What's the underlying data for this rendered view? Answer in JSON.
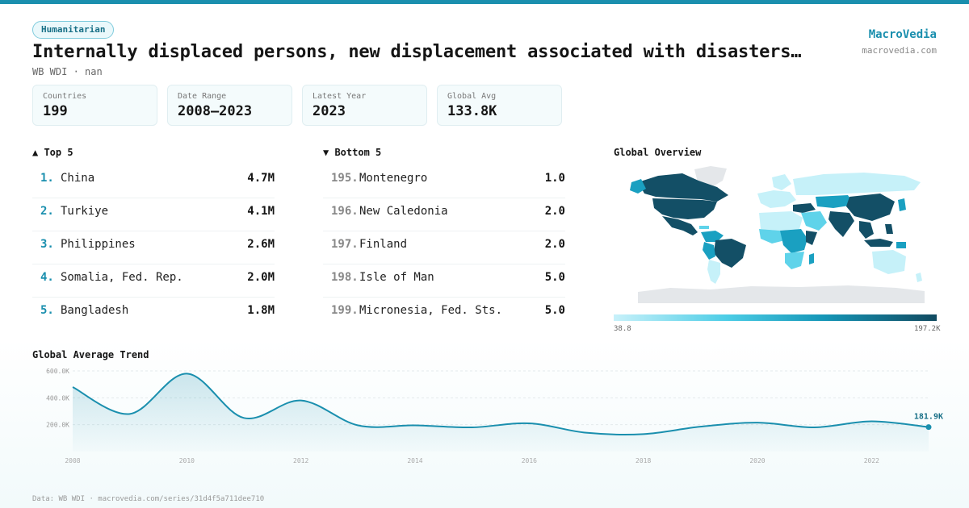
{
  "category": "Humanitarian",
  "title": "Internally displaced persons, new displacement associated with disasters…",
  "subtitle": "WB WDI · nan",
  "brand": {
    "name": "MacroVedia",
    "url": "macrovedia.com"
  },
  "stats": [
    {
      "label": "Countries",
      "value": "199"
    },
    {
      "label": "Date Range",
      "value": "2008–2023"
    },
    {
      "label": "Latest Year",
      "value": "2023"
    },
    {
      "label": "Global Avg",
      "value": "133.8K"
    }
  ],
  "top5": {
    "heading": "▲ Top 5",
    "items": [
      {
        "rank": "1.",
        "name": "China",
        "value": "4.7M"
      },
      {
        "rank": "2.",
        "name": "Turkiye",
        "value": "4.1M"
      },
      {
        "rank": "3.",
        "name": "Philippines",
        "value": "2.6M"
      },
      {
        "rank": "4.",
        "name": "Somalia, Fed. Rep.",
        "value": "2.0M"
      },
      {
        "rank": "5.",
        "name": "Bangladesh",
        "value": "1.8M"
      }
    ]
  },
  "bottom5": {
    "heading": "▼ Bottom 5",
    "items": [
      {
        "rank": "195.",
        "name": "Montenegro",
        "value": "1.0"
      },
      {
        "rank": "196.",
        "name": "New Caledonia",
        "value": "2.0"
      },
      {
        "rank": "197.",
        "name": "Finland",
        "value": "2.0"
      },
      {
        "rank": "198.",
        "name": "Isle of Man",
        "value": "5.0"
      },
      {
        "rank": "199.",
        "name": "Micronesia, Fed. Sts.",
        "value": "5.0"
      }
    ]
  },
  "map": {
    "heading": "Global Overview",
    "legend_min": "38.8",
    "legend_max": "197.2K",
    "colors": {
      "dark": "#134f66",
      "mid": "#1aa0c1",
      "light": "#5fd3ea",
      "pale": "#c6f1f9",
      "nodata": "#e4e7ea"
    }
  },
  "trend_heading": "Global Average Trend",
  "chart_data": {
    "type": "line",
    "title": "Global Average Trend",
    "x": [
      2008,
      2009,
      2010,
      2011,
      2012,
      2013,
      2014,
      2015,
      2016,
      2017,
      2018,
      2019,
      2020,
      2021,
      2022,
      2023
    ],
    "values": [
      480000,
      280000,
      580000,
      250000,
      380000,
      195000,
      195000,
      180000,
      210000,
      140000,
      130000,
      185000,
      215000,
      180000,
      225000,
      181900
    ],
    "ylim": [
      0,
      660000
    ],
    "yticks": [
      200000,
      400000,
      600000
    ],
    "ytick_labels": [
      "200.0K",
      "400.0K",
      "600.0K"
    ],
    "xticks": [
      2008,
      2010,
      2012,
      2014,
      2016,
      2018,
      2020,
      2022
    ],
    "last_label": "181.9K",
    "color": "#1a8fae"
  },
  "footer": "Data: WB WDI · macrovedia.com/series/31d4f5a711dee710"
}
